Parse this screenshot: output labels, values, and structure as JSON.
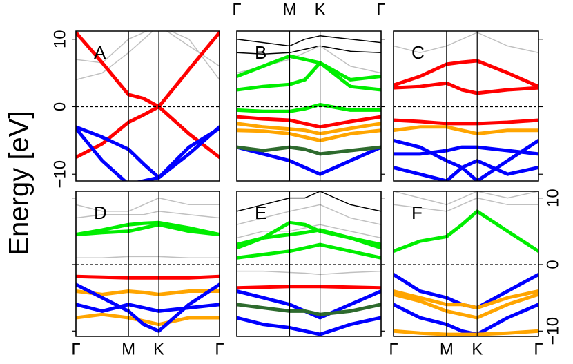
{
  "chart_data": [
    {
      "type": "line",
      "title": "A",
      "ylabel": "Energy [eV]",
      "x": [
        0,
        0.5,
        1,
        1.29,
        1.577,
        2.15,
        2.732
      ],
      "xlim": [
        0,
        2.732
      ],
      "ylim": [
        -11,
        11.2
      ],
      "xticks": [
        0,
        1,
        1.577,
        2.732
      ],
      "yticks": [
        {
          "value": 10,
          "label": "10"
        },
        {
          "value": 0,
          "label": "0"
        },
        {
          "value": -10,
          "label": "−10"
        }
      ],
      "zero_line": 0,
      "series": [
        {
          "color": "#c0c0c0",
          "values": [
            7,
            6.5,
            10,
            11,
            12,
            9,
            6
          ]
        },
        {
          "color": "#c0c0c0",
          "values": [
            4,
            5,
            8,
            10,
            12,
            10,
            4
          ]
        },
        {
          "color": "#ff0000",
          "values": [
            11,
            6.5,
            1.8,
            1.2,
            0,
            -4,
            -7.5
          ]
        },
        {
          "color": "#ff0000",
          "values": [
            -7.5,
            -5.5,
            -2.3,
            -1.2,
            0,
            5.5,
            11
          ]
        },
        {
          "color": "#0000ff",
          "values": [
            -3,
            -4.5,
            -6.3,
            -8.5,
            -10.5,
            -7,
            -3
          ]
        },
        {
          "color": "#0000ff",
          "values": [
            -3.2,
            -8,
            -11.5,
            -11,
            -10.5,
            -6,
            -3.2
          ]
        }
      ]
    },
    {
      "type": "line",
      "title": "B",
      "x": [
        0,
        0.5,
        1,
        1.29,
        1.577,
        2.15,
        2.732
      ],
      "xlim": [
        0,
        2.732
      ],
      "ylim": [
        -11,
        11.2
      ],
      "xticks": [
        {
          "value": 0,
          "label": "Γ"
        },
        {
          "value": 1,
          "label": "M"
        },
        {
          "value": 1.577,
          "label": "K"
        },
        {
          "value": 2.732,
          "label": "Γ"
        }
      ],
      "yticks": [
        10,
        0,
        -10
      ],
      "zero_line": 0,
      "series": [
        {
          "color": "#000000",
          "values": [
            8,
            7.8,
            8,
            8.5,
            9,
            8.2,
            8
          ]
        },
        {
          "color": "#000000",
          "values": [
            10,
            9.5,
            9,
            10,
            10.5,
            10,
            9.5
          ]
        },
        {
          "color": "#c0c0c0",
          "values": [
            5,
            6,
            7,
            8,
            9,
            6,
            5
          ]
        },
        {
          "color": "#00ee00",
          "values": [
            4.5,
            6,
            7.5,
            7,
            6.5,
            4,
            4.5
          ]
        },
        {
          "color": "#00ee00",
          "values": [
            2.5,
            3,
            3.3,
            4,
            6.5,
            3,
            2.5
          ]
        },
        {
          "color": "#00ee00",
          "values": [
            -0.5,
            -0.7,
            -0.7,
            -0.3,
            0.3,
            -0.5,
            -0.5
          ]
        },
        {
          "color": "#ff0000",
          "values": [
            -1.5,
            -1.8,
            -2,
            -2.5,
            -3,
            -2.2,
            -1.5
          ]
        },
        {
          "color": "#ffa500",
          "values": [
            -2.5,
            -3,
            -3.3,
            -3.5,
            -4,
            -3.2,
            -2.5
          ]
        },
        {
          "color": "#ffa500",
          "values": [
            -3.5,
            -3.6,
            -4,
            -4.5,
            -5,
            -4,
            -3.5
          ]
        },
        {
          "color": "#0000ff",
          "values": [
            -6,
            -7,
            -8,
            -9,
            -10,
            -8,
            -6
          ]
        },
        {
          "color": "#2e6b2e",
          "values": [
            -6,
            -6.5,
            -6,
            -6.3,
            -7,
            -6.5,
            -6
          ]
        }
      ]
    },
    {
      "type": "line",
      "title": "C",
      "x": [
        0,
        0.5,
        1,
        1.29,
        1.577,
        2.15,
        2.732
      ],
      "xlim": [
        0,
        2.732
      ],
      "ylim": [
        -11,
        11.2
      ],
      "xticks": [
        0,
        1,
        1.577,
        2.732
      ],
      "yticks": [
        10,
        0,
        -10
      ],
      "zero_line": 0,
      "series": [
        {
          "color": "#c0c0c0",
          "values": [
            9,
            8,
            9,
            10,
            11,
            9,
            8
          ]
        },
        {
          "color": "#ff0000",
          "values": [
            3.2,
            4.5,
            6.3,
            6.6,
            6.8,
            5,
            3
          ]
        },
        {
          "color": "#ff0000",
          "values": [
            2.8,
            3,
            3.5,
            2.5,
            2,
            2.5,
            2.8
          ]
        },
        {
          "color": "#ff0000",
          "values": [
            -2,
            -2.2,
            -2.5,
            -2.5,
            -2.5,
            -2.3,
            -2
          ]
        },
        {
          "color": "#ffa500",
          "values": [
            -3.5,
            -3,
            -3,
            -3.5,
            -4,
            -3.5,
            -3.5
          ]
        },
        {
          "color": "#0000ff",
          "values": [
            -5,
            -6,
            -8,
            -9,
            -11,
            -8,
            -5
          ]
        },
        {
          "color": "#0000ff",
          "values": [
            -7,
            -7,
            -6.5,
            -6,
            -6,
            -6.5,
            -7
          ]
        },
        {
          "color": "#0000ff",
          "values": [
            -9,
            -10,
            -11,
            -9,
            -8,
            -10,
            -9
          ]
        }
      ]
    },
    {
      "type": "line",
      "title": "D",
      "x": [
        0,
        0.5,
        1,
        1.29,
        1.577,
        2.15,
        2.732
      ],
      "xlim": [
        0,
        2.732
      ],
      "ylim": [
        -10.8,
        11
      ],
      "xticks": [
        {
          "value": 0,
          "label": "Γ"
        },
        {
          "value": 1,
          "label": "M"
        },
        {
          "value": 1.577,
          "label": "K"
        },
        {
          "value": 2.732,
          "label": "Γ"
        }
      ],
      "yticks": [
        10,
        0,
        -10
      ],
      "zero_line": 0,
      "series": [
        {
          "color": "#c0c0c0",
          "values": [
            9,
            8,
            8,
            9,
            10,
            9,
            9
          ]
        },
        {
          "color": "#c0c0c0",
          "values": [
            7,
            7.5,
            7.5,
            7.5,
            8,
            7.5,
            7
          ]
        },
        {
          "color": "#c0c0c0",
          "values": [
            1,
            1,
            1.2,
            1.2,
            1.2,
            1,
            1
          ]
        },
        {
          "color": "#00ee00",
          "values": [
            4.5,
            5.2,
            6,
            6.2,
            6.3,
            5.5,
            4.5
          ]
        },
        {
          "color": "#00ee00",
          "values": [
            4.5,
            4.8,
            5,
            5.5,
            6,
            5,
            4.5
          ]
        },
        {
          "color": "#ff0000",
          "values": [
            -1.8,
            -1.9,
            -2,
            -2,
            -2,
            -2,
            -1.8
          ]
        },
        {
          "color": "#ffa500",
          "values": [
            -4,
            -4.5,
            -4,
            -4.2,
            -4.5,
            -4,
            -4
          ]
        },
        {
          "color": "#ffa500",
          "values": [
            -8,
            -7.5,
            -8,
            -8.5,
            -9,
            -8,
            -8
          ]
        },
        {
          "color": "#0000ff",
          "values": [
            -3,
            -5,
            -7,
            -9,
            -10,
            -6,
            -3
          ]
        },
        {
          "color": "#0000ff",
          "values": [
            -6,
            -7,
            -6,
            -6.5,
            -7,
            -6.5,
            -6
          ]
        }
      ]
    },
    {
      "type": "line",
      "title": "E",
      "x": [
        0,
        0.5,
        1,
        1.29,
        1.577,
        2.15,
        2.732
      ],
      "xlim": [
        0,
        2.732
      ],
      "ylim": [
        -10.8,
        11
      ],
      "xticks": [
        0,
        1,
        1.577,
        2.732
      ],
      "yticks": [
        10,
        0,
        -10
      ],
      "zero_line": 0,
      "series": [
        {
          "color": "#000000",
          "values": [
            8,
            9,
            10,
            10,
            11,
            9,
            8
          ]
        },
        {
          "color": "#c0c0c0",
          "values": [
            6,
            7,
            8,
            8.5,
            9,
            7,
            6
          ]
        },
        {
          "color": "#c0c0c0",
          "values": [
            4,
            5,
            5,
            5.5,
            6,
            5,
            4
          ]
        },
        {
          "color": "#00ee00",
          "values": [
            2.5,
            4,
            6.3,
            6,
            5,
            4,
            2.5
          ]
        },
        {
          "color": "#00ee00",
          "values": [
            3,
            4,
            4.5,
            4.8,
            5.2,
            4,
            3
          ]
        },
        {
          "color": "#00ee00",
          "values": [
            1,
            1.5,
            2,
            2.5,
            3,
            2,
            1
          ]
        },
        {
          "color": "#c0c0c0",
          "values": [
            -1,
            -1,
            -1.2,
            -1.3,
            -1.5,
            -1.2,
            -1
          ]
        },
        {
          "color": "#ff0000",
          "values": [
            -3.5,
            -3.4,
            -3.3,
            -3.3,
            -3.3,
            -3.4,
            -3.5
          ]
        },
        {
          "color": "#0000ff",
          "values": [
            -4,
            -5,
            -6,
            -7,
            -8,
            -6,
            -4
          ]
        },
        {
          "color": "#2e6b2e",
          "values": [
            -6,
            -6.5,
            -7,
            -7,
            -7.5,
            -7,
            -6
          ]
        },
        {
          "color": "#0000ff",
          "values": [
            -8,
            -9,
            -9.5,
            -10,
            -10.5,
            -9,
            -8
          ]
        }
      ]
    },
    {
      "type": "line",
      "title": "F",
      "x": [
        0,
        0.5,
        1,
        1.29,
        1.577,
        2.15,
        2.732
      ],
      "xlim": [
        0,
        2.732
      ],
      "ylim": [
        -10.8,
        11
      ],
      "xticks": [
        {
          "value": 0,
          "label": "Γ"
        },
        {
          "value": 1,
          "label": "M"
        },
        {
          "value": 1.577,
          "label": "K"
        },
        {
          "value": 2.732,
          "label": "Γ"
        }
      ],
      "yticks": [
        {
          "value": 10,
          "label": "10"
        },
        {
          "value": 0,
          "label": "0"
        },
        {
          "value": -10,
          "label": "−10"
        }
      ],
      "zero_line": 0,
      "series": [
        {
          "color": "#c0c0c0",
          "values": [
            11,
            10,
            9,
            10,
            11,
            10,
            11
          ]
        },
        {
          "color": "#c0c0c0",
          "values": [
            9,
            8.5,
            8,
            9,
            10,
            9,
            9
          ]
        },
        {
          "color": "#00ee00",
          "values": [
            2,
            3.5,
            4.2,
            6,
            8,
            5,
            2
          ]
        },
        {
          "color": "#0000ff",
          "values": [
            -1.5,
            -4,
            -5,
            -6,
            -6.5,
            -4,
            -1.5
          ]
        },
        {
          "color": "#ffa500",
          "values": [
            -4,
            -5,
            -6,
            -6,
            -6.5,
            -5,
            -4
          ]
        },
        {
          "color": "#ffa500",
          "values": [
            -4.5,
            -5.5,
            -7,
            -7.5,
            -8,
            -6,
            -4.5
          ]
        },
        {
          "color": "#0000ff",
          "values": [
            -6,
            -8,
            -9,
            -10,
            -10.5,
            -8,
            -6
          ]
        },
        {
          "color": "#ffa500",
          "values": [
            -10,
            -10.3,
            -10.5,
            -10.5,
            -10.5,
            -10.3,
            -10
          ]
        }
      ]
    }
  ]
}
